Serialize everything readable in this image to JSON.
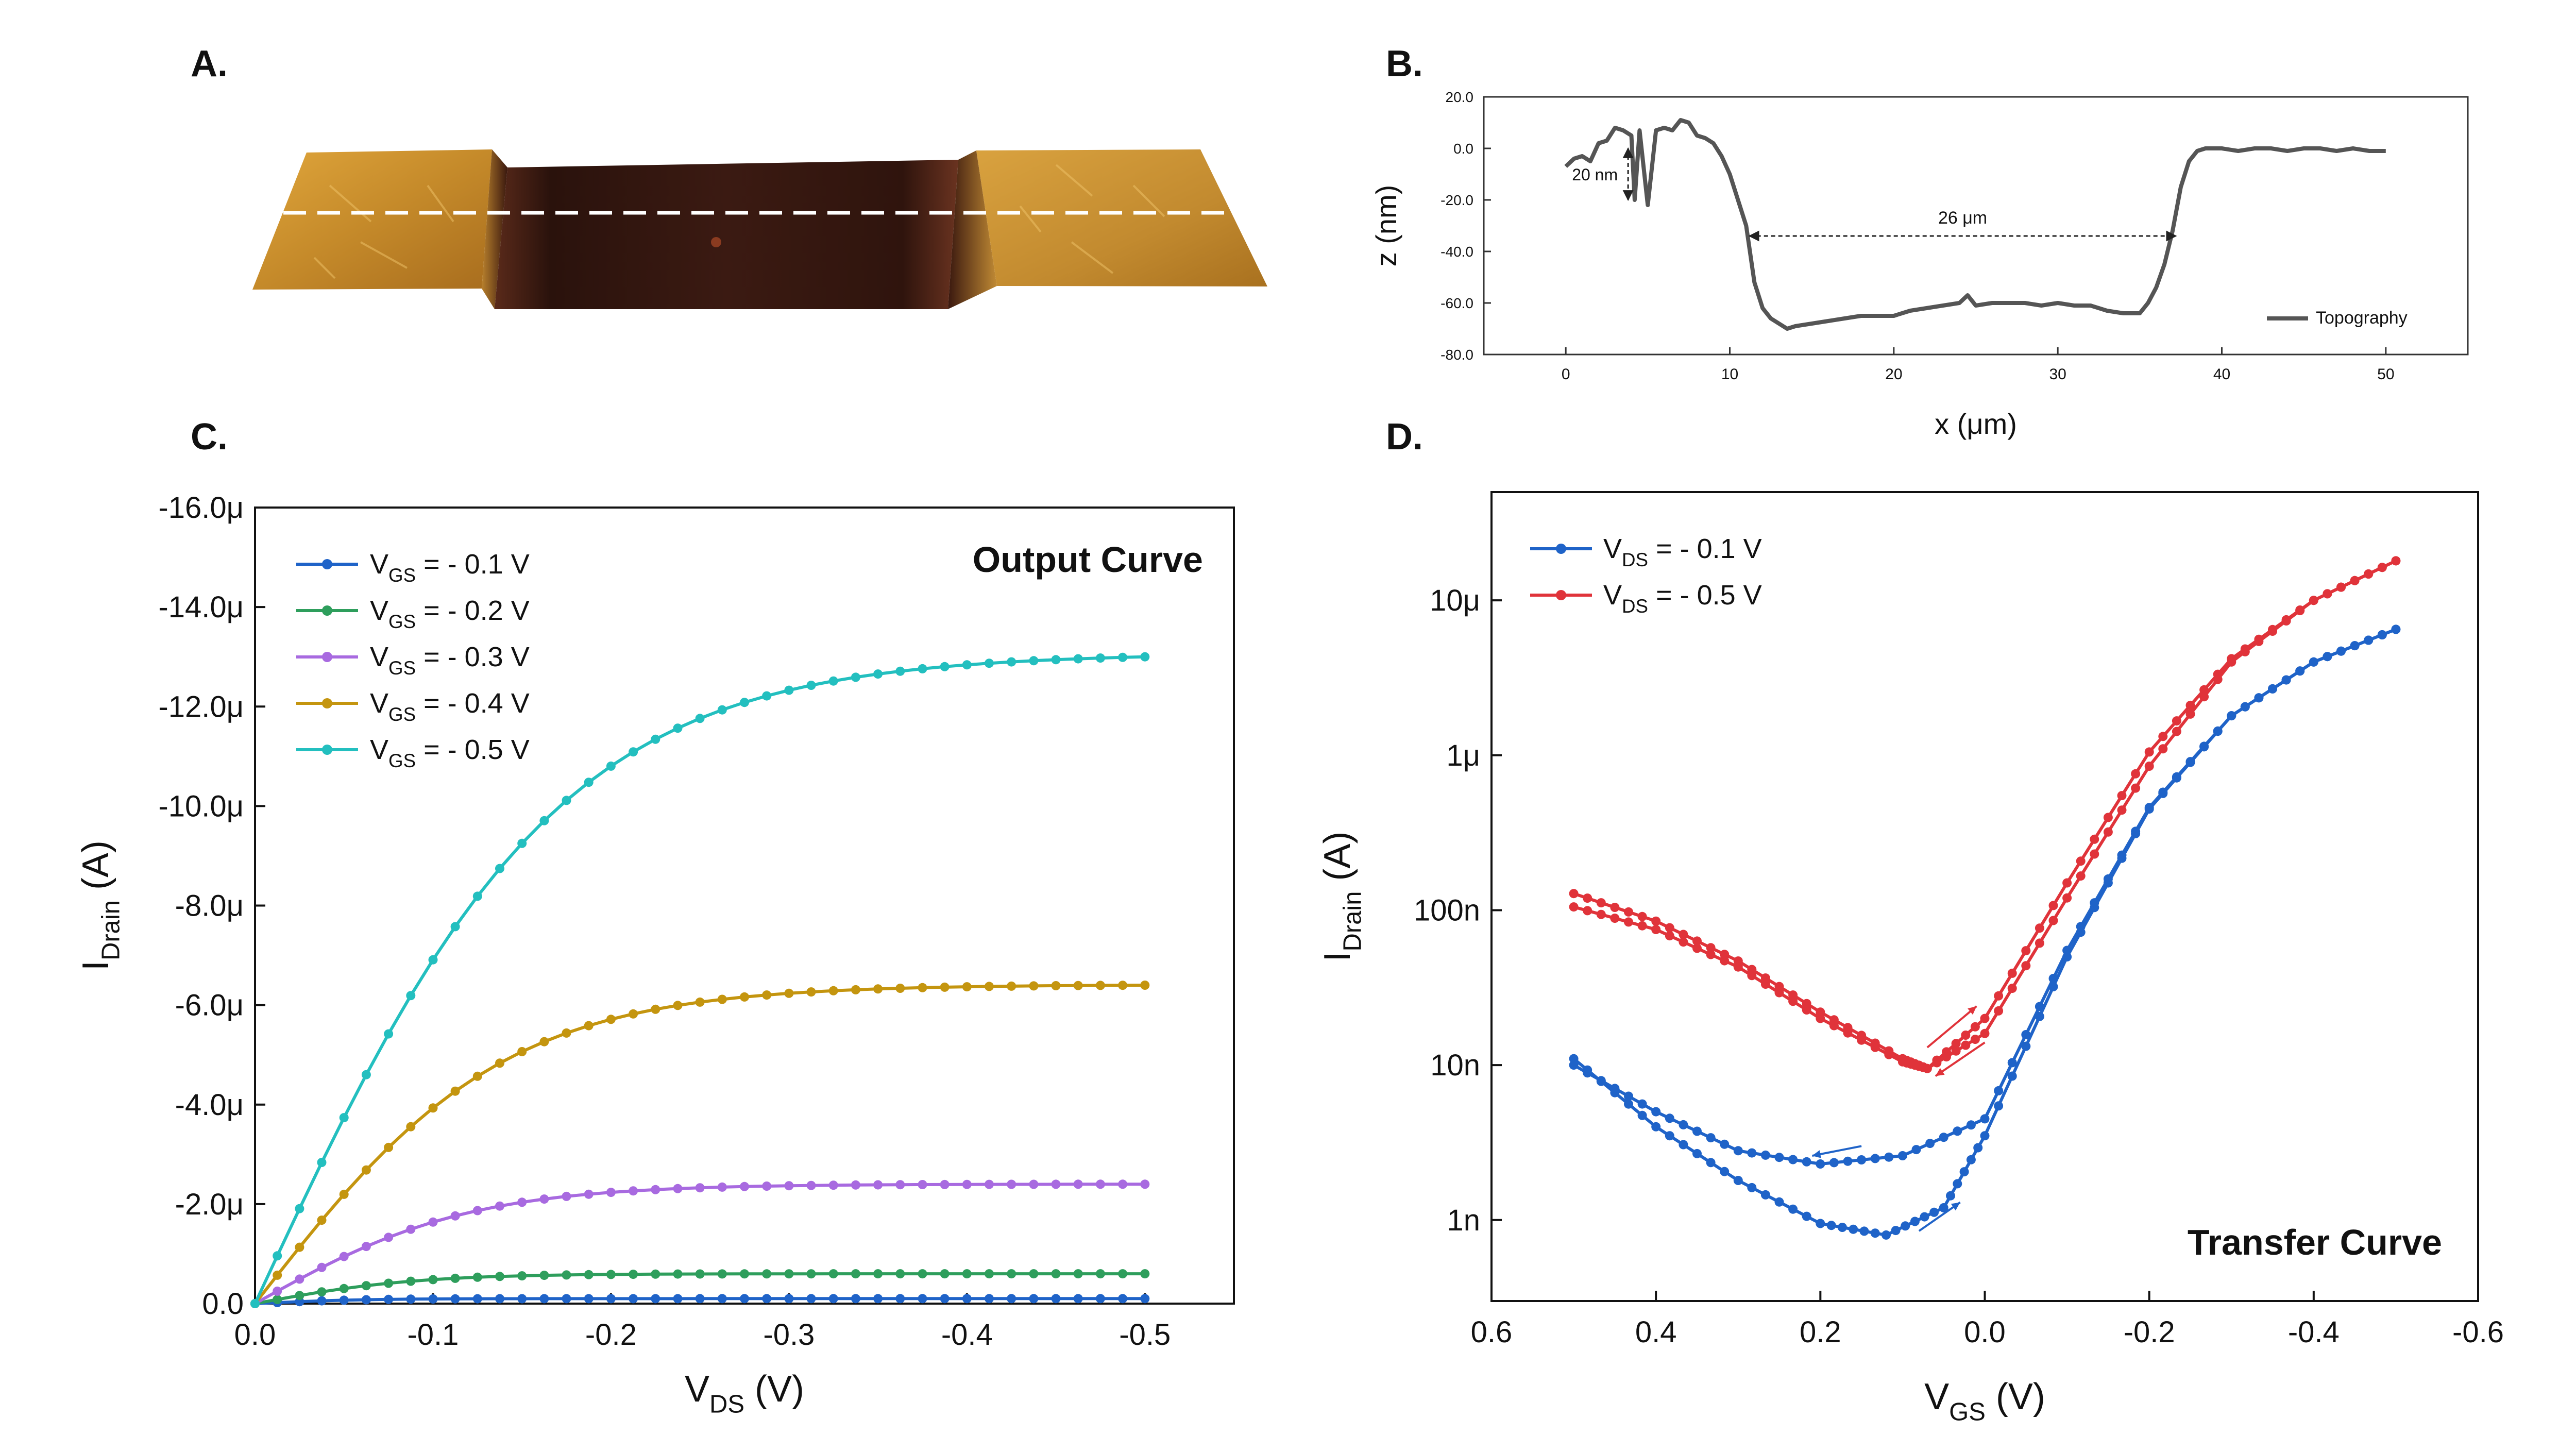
{
  "panels": {
    "a": {
      "letter": "A."
    },
    "b": {
      "letter": "B."
    },
    "c": {
      "letter": "C."
    },
    "d": {
      "letter": "D."
    }
  },
  "afm": {
    "description_label": "",
    "colors": {
      "terrace": "#c8912e",
      "trench": "#3a1a14",
      "scanline": "#ffffff"
    }
  },
  "chart_data": [
    {
      "id": "B",
      "type": "line",
      "xlabel_main": "x (",
      "xlabel_mu": "μ",
      "xlabel_end": "m)",
      "ylabel": "z (nm)",
      "xlim": [
        -5,
        55
      ],
      "ylim": [
        -80,
        20
      ],
      "xticks": [
        0,
        10,
        20,
        30,
        40,
        50
      ],
      "xtick_labels": [
        "0",
        "10",
        "20",
        "30",
        "40",
        "50"
      ],
      "yticks": [
        20,
        0,
        -20,
        -40,
        -60,
        -80
      ],
      "ytick_labels": [
        "20.0",
        "0.0",
        "-20.0",
        "-40.0",
        "-60.0",
        "-80.0"
      ],
      "annotations": [
        {
          "text": "20 nm",
          "type": "vertical-arrow",
          "x": 3.8,
          "y1": 0,
          "y2": -20
        },
        {
          "text": "26 μm",
          "type": "horizontal-arrow",
          "x1": 11.2,
          "x2": 37.2,
          "y": -34
        }
      ],
      "series": [
        {
          "name": "Topography",
          "color": "#555555",
          "x": [
            0,
            0.5,
            1,
            1.5,
            2,
            2.5,
            3,
            3.5,
            4,
            4.2,
            4.5,
            5,
            5.5,
            6,
            6.5,
            7,
            7.5,
            8,
            8.5,
            9,
            9.5,
            10,
            10.5,
            11,
            11.5,
            12,
            12.5,
            13,
            13.5,
            14,
            15,
            16,
            17,
            18,
            19,
            20,
            21,
            22,
            23,
            24,
            24.5,
            25,
            26,
            27,
            28,
            29,
            30,
            31,
            32,
            33,
            34,
            35,
            35.5,
            36,
            36.5,
            37,
            37.5,
            38,
            38.5,
            39,
            40,
            41,
            42,
            43,
            44,
            45,
            46,
            47,
            48,
            49,
            50
          ],
          "y": [
            -7,
            -4,
            -3,
            -5,
            2,
            3,
            8,
            7,
            5,
            -20,
            7,
            -22,
            7,
            8,
            7,
            11,
            10,
            5,
            4,
            2,
            -3,
            -10,
            -20,
            -30,
            -52,
            -62,
            -66,
            -68,
            -70,
            -69,
            -68,
            -67,
            -66,
            -65,
            -65,
            -65,
            -63,
            -62,
            -61,
            -60,
            -57,
            -61,
            -60,
            -60,
            -60,
            -61,
            -60,
            -61,
            -61,
            -63,
            -64,
            -64,
            -60,
            -54,
            -45,
            -32,
            -15,
            -5,
            -1,
            0,
            0,
            -1,
            0,
            0,
            -1,
            0,
            0,
            -1,
            0,
            -1,
            -1
          ]
        }
      ]
    },
    {
      "id": "C",
      "type": "line",
      "title": "Output Curve",
      "xlabel": "V",
      "xlabel_sub": "DS",
      "xlabel_end": " (V)",
      "ylabel": "I",
      "ylabel_sub": "Drain",
      "ylabel_end": " (A)",
      "xlim": [
        0.0,
        -0.55
      ],
      "ylim": [
        0,
        -1.6e-05
      ],
      "xticks": [
        0.0,
        -0.1,
        -0.2,
        -0.3,
        -0.4,
        -0.5
      ],
      "xtick_labels": [
        "0.0",
        "-0.1",
        "-0.2",
        "-0.3",
        "-0.4",
        "-0.5"
      ],
      "yticks": [
        0,
        -2e-06,
        -4e-06,
        -6e-06,
        -8e-06,
        -1e-05,
        -1.2e-05,
        -1.4e-05,
        -1.6e-05
      ],
      "ytick_labels": [
        "0.0",
        "-2.0μ",
        "-4.0μ",
        "-6.0μ",
        "-8.0μ",
        "-10.0μ",
        "-12.0μ",
        "-14.0μ",
        "-16.0μ"
      ],
      "series": [
        {
          "name_main": "V",
          "name_sub": "GS",
          "name_end": " = - 0.1 V",
          "color": "#1f63c8",
          "isat": -1e-07,
          "vk": 0.06
        },
        {
          "name_main": "V",
          "name_sub": "GS",
          "name_end": " = - 0.2 V",
          "color": "#2e9e5c",
          "isat": -6e-07,
          "vk": 0.09
        },
        {
          "name_main": "V",
          "name_sub": "GS",
          "name_end": " = - 0.3 V",
          "color": "#a86ae0",
          "isat": -2.55e-06,
          "vk": 0.12
        },
        {
          "name_main": "V",
          "name_sub": "GS",
          "name_end": " = - 0.4 V",
          "color": "#c4950f",
          "isat": -6.9e-06,
          "vk": 0.14
        },
        {
          "name_main": "V",
          "name_sub": "GS",
          "name_end": " = - 0.5 V",
          "color": "#23bfbf",
          "isat": -1.43e-05,
          "vk": 0.17
        }
      ],
      "vds_points": [
        0.0,
        -0.5
      ],
      "end_values": [
        -1e-07,
        -6e-07,
        -2.4e-06,
        -6.4e-06,
        -1.3e-05
      ]
    },
    {
      "id": "D",
      "type": "line",
      "title": "Transfer Curve",
      "xlabel": "V",
      "xlabel_sub": "GS",
      "xlabel_end": " (V)",
      "ylabel": "I",
      "ylabel_sub": "Drain",
      "ylabel_end": " (A)",
      "scale_y": "log",
      "xlim": [
        0.6,
        -0.6
      ],
      "ylim": [
        3e-10,
        5e-05
      ],
      "xticks": [
        0.6,
        0.4,
        0.2,
        0.0,
        -0.2,
        -0.4,
        -0.6
      ],
      "xtick_labels": [
        "0.6",
        "0.4",
        "0.2",
        "0.0",
        "-0.2",
        "-0.4",
        "-0.6"
      ],
      "yticks": [
        1e-09,
        1e-08,
        1e-07,
        1e-06,
        1e-05
      ],
      "ytick_labels": [
        "1n",
        "10n",
        "100n",
        "1μ",
        "10μ"
      ],
      "series": [
        {
          "name_main": "V",
          "name_sub": "DS",
          "name_end": " = - 0.1 V",
          "color": "#1f63c8",
          "forward_x": [
            0.5,
            0.4,
            0.3,
            0.2,
            0.12,
            0.05,
            0.0,
            -0.1,
            -0.2,
            -0.3,
            -0.4,
            -0.5
          ],
          "forward_y": [
            1.1e-08,
            4e-09,
            1.8e-09,
            9.5e-10,
            8e-10,
            1.2e-09,
            3.5e-09,
            5e-08,
            4.5e-07,
            1.8e-06,
            4e-06,
            6.5e-06
          ],
          "reverse_x": [
            -0.5,
            -0.4,
            -0.3,
            -0.2,
            -0.1,
            0.0,
            0.1,
            0.2,
            0.3,
            0.4,
            0.5
          ],
          "reverse_y": [
            6.5e-06,
            4e-06,
            1.8e-06,
            4.6e-07,
            5.5e-08,
            4.5e-09,
            2.6e-09,
            2.3e-09,
            2.8e-09,
            5e-09,
            1e-08
          ]
        },
        {
          "name_main": "V",
          "name_sub": "DS",
          "name_end": " = - 0.5 V",
          "color": "#e0333a",
          "forward_x": [
            0.5,
            0.4,
            0.3,
            0.2,
            0.1,
            0.07,
            0.0,
            -0.1,
            -0.2,
            -0.3,
            -0.4,
            -0.5
          ],
          "forward_y": [
            1.05e-07,
            7.5e-08,
            4.3e-08,
            2e-08,
            1.05e-08,
            9.5e-09,
            2e-08,
            1.5e-07,
            1.05e-06,
            4.2e-06,
            1e-05,
            1.8e-05
          ],
          "reverse_x": [
            -0.5,
            -0.4,
            -0.3,
            -0.2,
            -0.1,
            0.0,
            0.07,
            0.1,
            0.2,
            0.3,
            0.4,
            0.5
          ],
          "reverse_y": [
            1.8e-05,
            1e-05,
            4e-06,
            8.5e-07,
            1.2e-07,
            1.6e-08,
            9.5e-09,
            1.1e-08,
            2.2e-08,
            4.7e-08,
            8.5e-08,
            1.28e-07
          ]
        }
      ]
    }
  ]
}
